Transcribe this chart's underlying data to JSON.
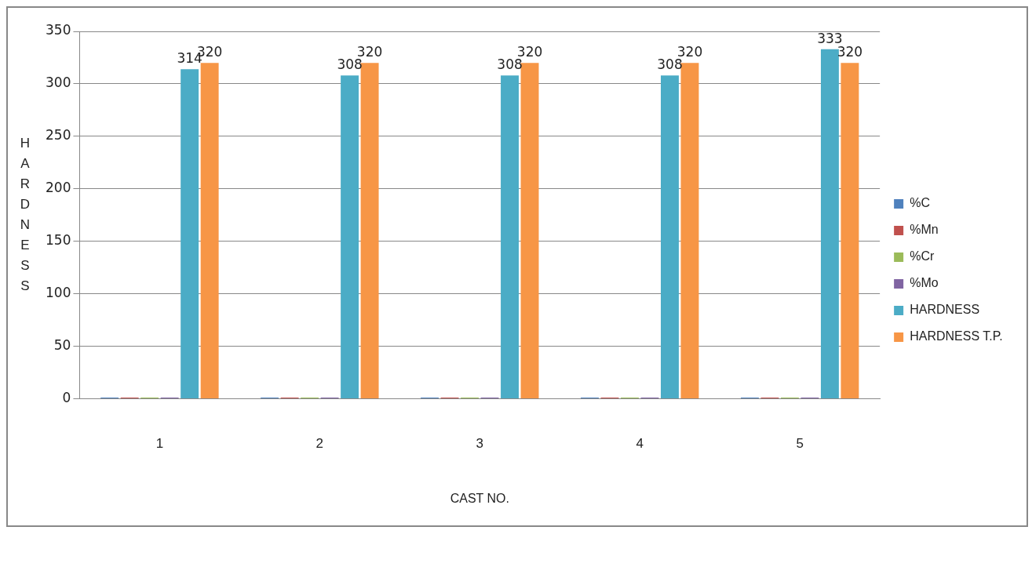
{
  "chart_data": {
    "type": "bar",
    "xlabel": "CAST NO.",
    "ylabel": "HARDNESS",
    "categories": [
      "1",
      "2",
      "3",
      "4",
      "5"
    ],
    "series": [
      {
        "name": "%C",
        "color": "#4f81bd",
        "values": [
          1,
          1,
          1,
          1,
          1
        ]
      },
      {
        "name": "%Mn",
        "color": "#c0504d",
        "values": [
          1,
          1,
          1,
          1,
          1
        ]
      },
      {
        "name": "%Cr",
        "color": "#9bbb59",
        "values": [
          1,
          1,
          1,
          1,
          1
        ]
      },
      {
        "name": "%Mo",
        "color": "#8064a2",
        "values": [
          1,
          1,
          1,
          1,
          1
        ]
      },
      {
        "name": "HARDNESS",
        "color": "#4bacc6",
        "values": [
          314,
          308,
          308,
          308,
          333
        ],
        "value_labels": [
          "314",
          "308",
          "308",
          "308",
          "333"
        ]
      },
      {
        "name": "HARDNESS T.P.",
        "color": "#f79646",
        "values": [
          320,
          320,
          320,
          320,
          320
        ],
        "value_labels": [
          "320",
          "320",
          "320",
          "320",
          "320"
        ]
      }
    ],
    "ylim": [
      0,
      350
    ],
    "yticks": [
      0,
      50,
      100,
      150,
      200,
      250,
      300,
      350
    ],
    "grid": "y",
    "legend": "right"
  }
}
